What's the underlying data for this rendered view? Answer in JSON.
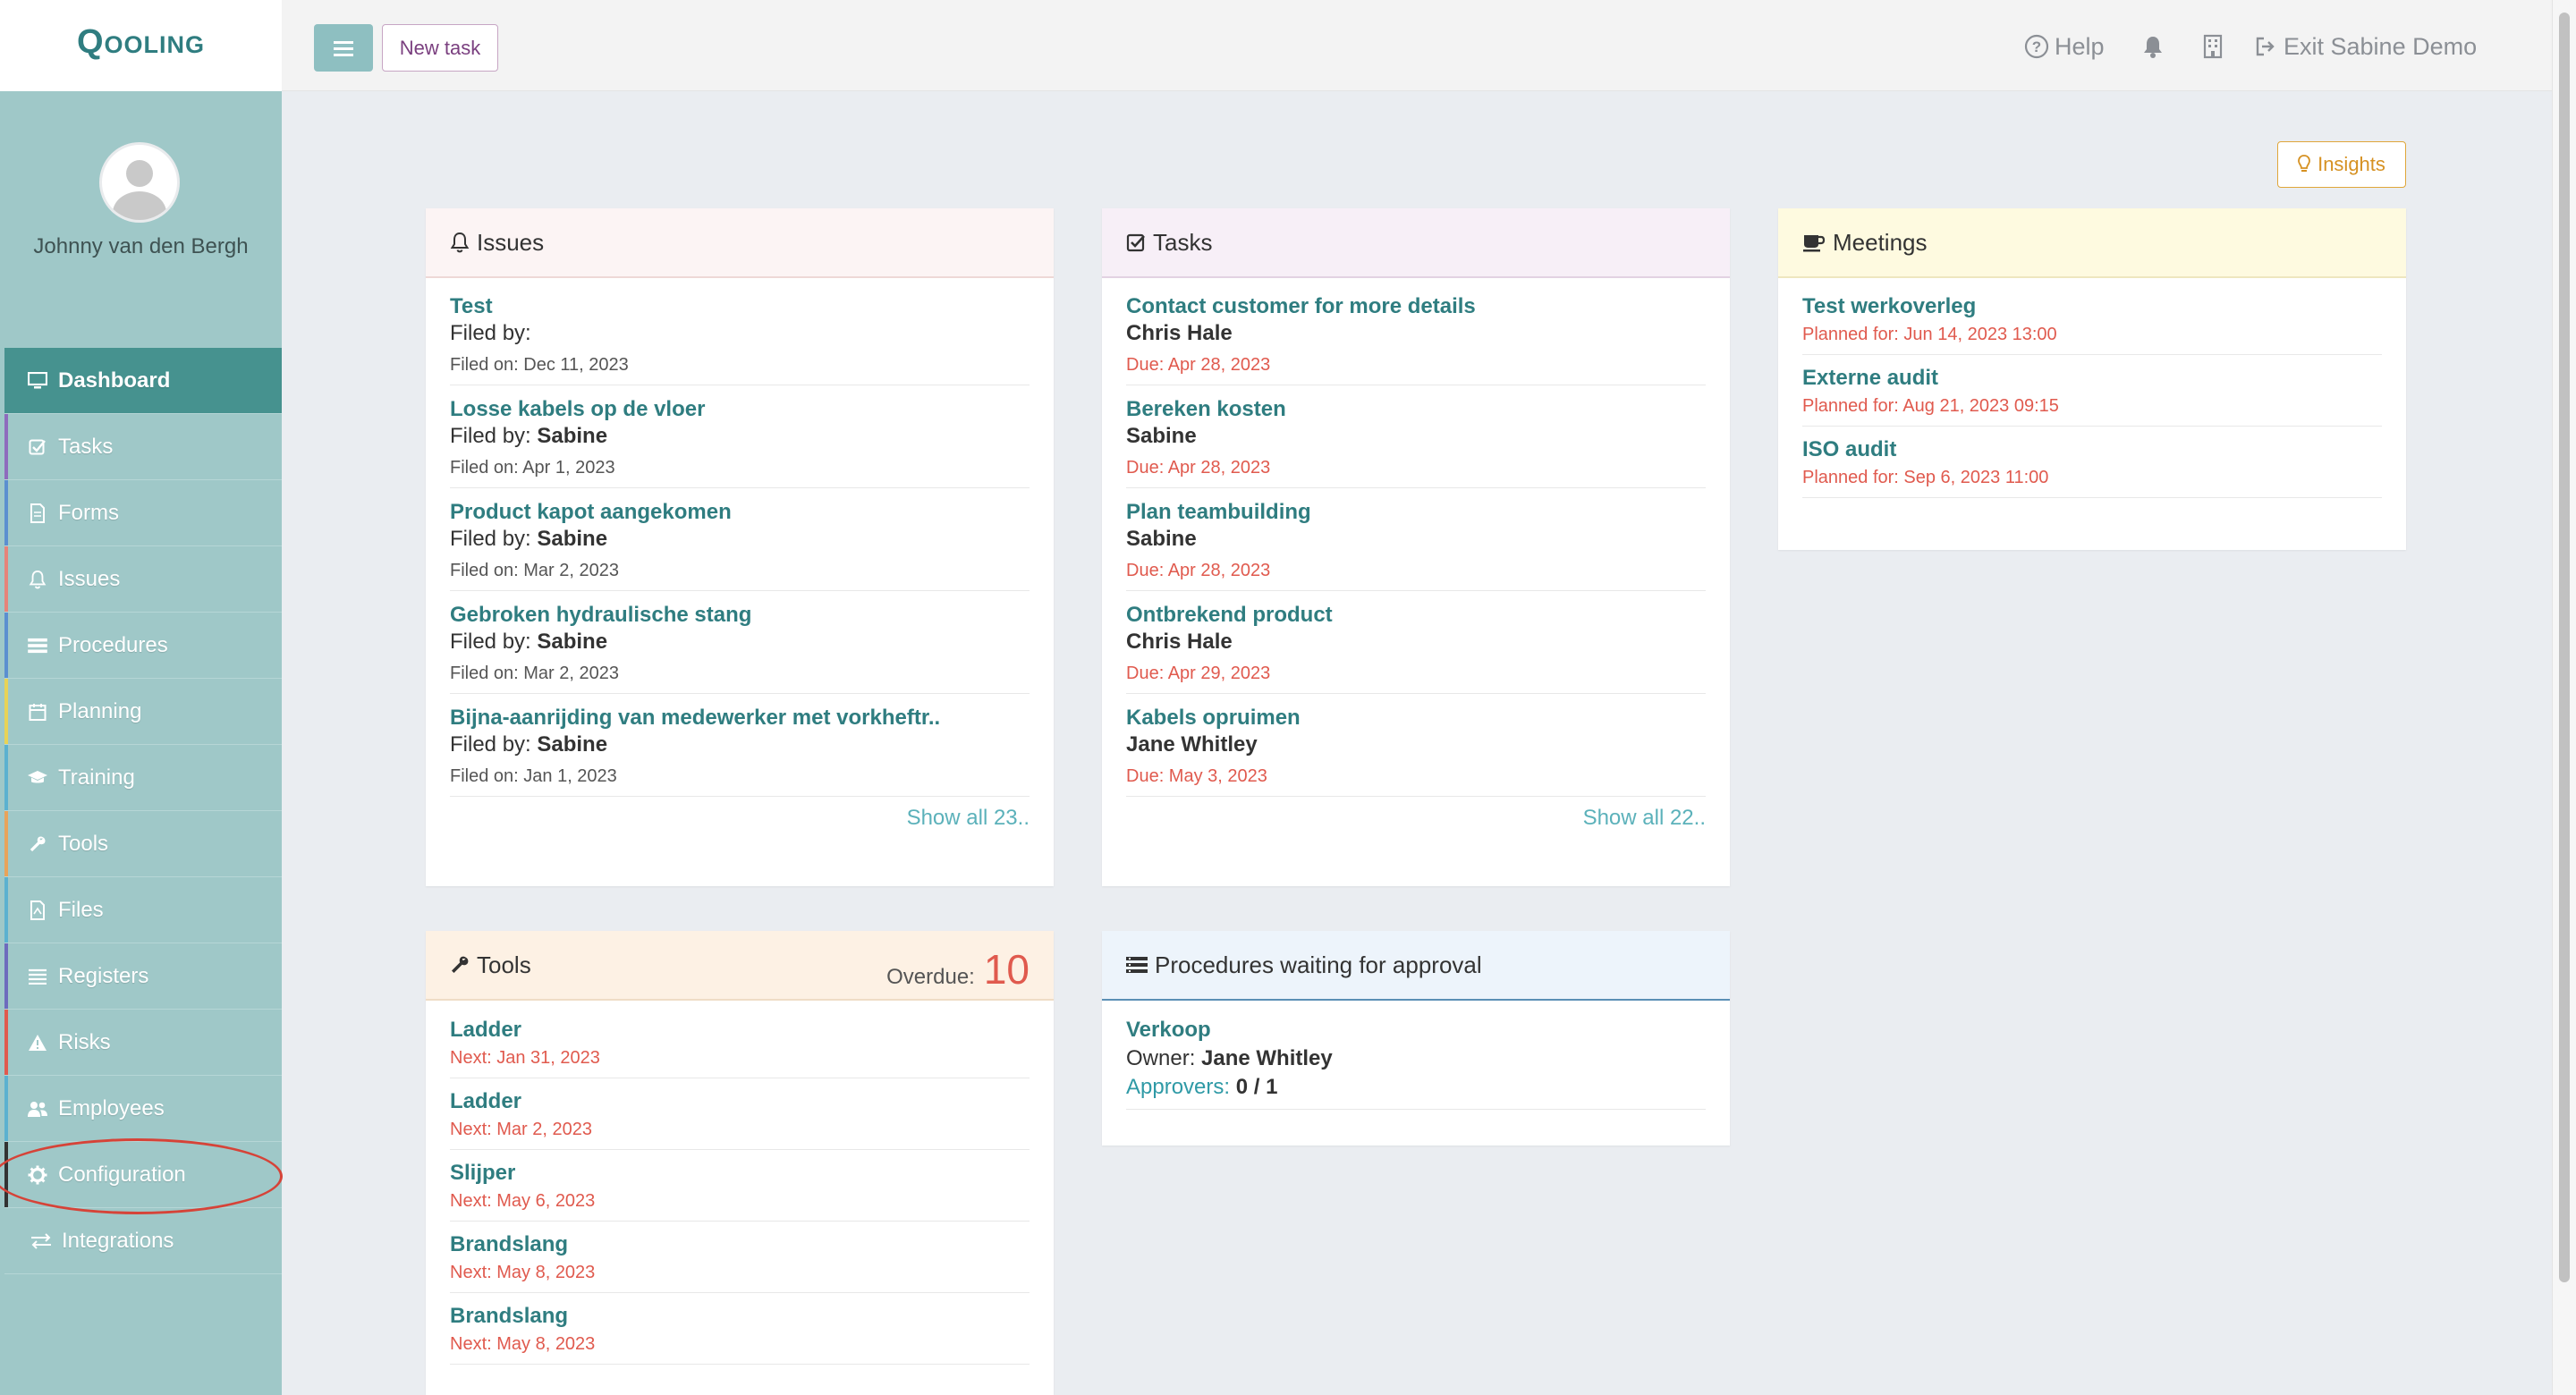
{
  "app": {
    "logo": "Qooling"
  },
  "user": {
    "name": "Johnny van den Bergh"
  },
  "topbar": {
    "new_task": "New task",
    "help": "Help",
    "exit": "Exit Sabine Demo"
  },
  "sidebar": {
    "items": [
      {
        "label": "Dashboard",
        "icon": "desktop-icon",
        "color": "#46928f",
        "active": true
      },
      {
        "label": "Tasks",
        "icon": "check-square-icon",
        "color": "#8e6bbd"
      },
      {
        "label": "Forms",
        "icon": "document-icon",
        "color": "#5b8fd0"
      },
      {
        "label": "Issues",
        "icon": "bell-icon",
        "color": "#e6837a"
      },
      {
        "label": "Procedures",
        "icon": "list-icon",
        "color": "#5b8fd0"
      },
      {
        "label": "Planning",
        "icon": "calendar-icon",
        "color": "#e8d356"
      },
      {
        "label": "Training",
        "icon": "graduation-cap-icon",
        "color": "#5bb1d0"
      },
      {
        "label": "Tools",
        "icon": "wrench-icon",
        "color": "#e8a35a"
      },
      {
        "label": "Files",
        "icon": "file-icon",
        "color": "#5bb1d0"
      },
      {
        "label": "Registers",
        "icon": "list-lines-icon",
        "color": "#6d6bbd"
      },
      {
        "label": "Risks",
        "icon": "warning-icon",
        "color": "#e05a4e"
      },
      {
        "label": "Employees",
        "icon": "users-icon",
        "color": "#5bb1d0"
      },
      {
        "label": "Configuration",
        "icon": "gear-icon",
        "color": "#333333"
      },
      {
        "label": "Integrations",
        "icon": "exchange-icon",
        "color": "#9fc8c8"
      }
    ]
  },
  "insights": {
    "label": "Insights"
  },
  "issues": {
    "title": "Issues",
    "filed_by_label": "Filed by:",
    "items": [
      {
        "title": "Test",
        "filed_by": "",
        "filed_on": "Filed on: Dec 11, 2023"
      },
      {
        "title": "Losse kabels op de vloer",
        "filed_by": "Sabine",
        "filed_on": "Filed on: Apr 1, 2023"
      },
      {
        "title": "Product kapot aangekomen",
        "filed_by": "Sabine",
        "filed_on": "Filed on: Mar 2, 2023"
      },
      {
        "title": "Gebroken hydraulische stang",
        "filed_by": "Sabine",
        "filed_on": "Filed on: Mar 2, 2023"
      },
      {
        "title": "Bijna-aanrijding van medewerker met vorkheftr..",
        "filed_by": "Sabine",
        "filed_on": "Filed on: Jan 1, 2023"
      }
    ],
    "show_all": "Show all 23.."
  },
  "tasks": {
    "title": "Tasks",
    "items": [
      {
        "title": "Contact customer for more details",
        "person": "Chris Hale",
        "due": "Due: Apr 28, 2023"
      },
      {
        "title": "Bereken kosten",
        "person": "Sabine",
        "due": "Due: Apr 28, 2023"
      },
      {
        "title": "Plan teambuilding",
        "person": "Sabine",
        "due": "Due: Apr 28, 2023"
      },
      {
        "title": "Ontbrekend product",
        "person": "Chris Hale",
        "due": "Due: Apr 29, 2023"
      },
      {
        "title": "Kabels opruimen",
        "person": "Jane Whitley",
        "due": "Due: May 3, 2023"
      }
    ],
    "show_all": "Show all 22.."
  },
  "meetings": {
    "title": "Meetings",
    "items": [
      {
        "title": "Test werkoverleg",
        "planned": "Planned for: Jun 14, 2023 13:00"
      },
      {
        "title": "Externe audit",
        "planned": "Planned for: Aug 21, 2023 09:15"
      },
      {
        "title": "ISO audit",
        "planned": "Planned for: Sep 6, 2023 11:00"
      }
    ]
  },
  "tools": {
    "title": "Tools",
    "overdue_label": "Overdue:",
    "overdue_count": "10",
    "items": [
      {
        "title": "Ladder",
        "next": "Next: Jan 31, 2023"
      },
      {
        "title": "Ladder",
        "next": "Next: Mar 2, 2023"
      },
      {
        "title": "Slijper",
        "next": "Next: May 6, 2023"
      },
      {
        "title": "Brandslang",
        "next": "Next: May 8, 2023"
      },
      {
        "title": "Brandslang",
        "next": "Next: May 8, 2023"
      }
    ]
  },
  "procedures": {
    "title": "Procedures waiting for approval",
    "owner_label": "Owner:",
    "approvers_label": "Approvers:",
    "items": [
      {
        "title": "Verkoop",
        "owner": "Jane Whitley",
        "approvers": "0 / 1"
      }
    ]
  },
  "colors": {
    "teal": "#2f7d80",
    "issues_header": "#fcf4f4",
    "tasks_header": "#f7eff7",
    "meetings_header": "#fefae0",
    "tools_header": "#fdf1e4",
    "procedures_header": "#edf4fb",
    "due": "#e05a4e"
  }
}
